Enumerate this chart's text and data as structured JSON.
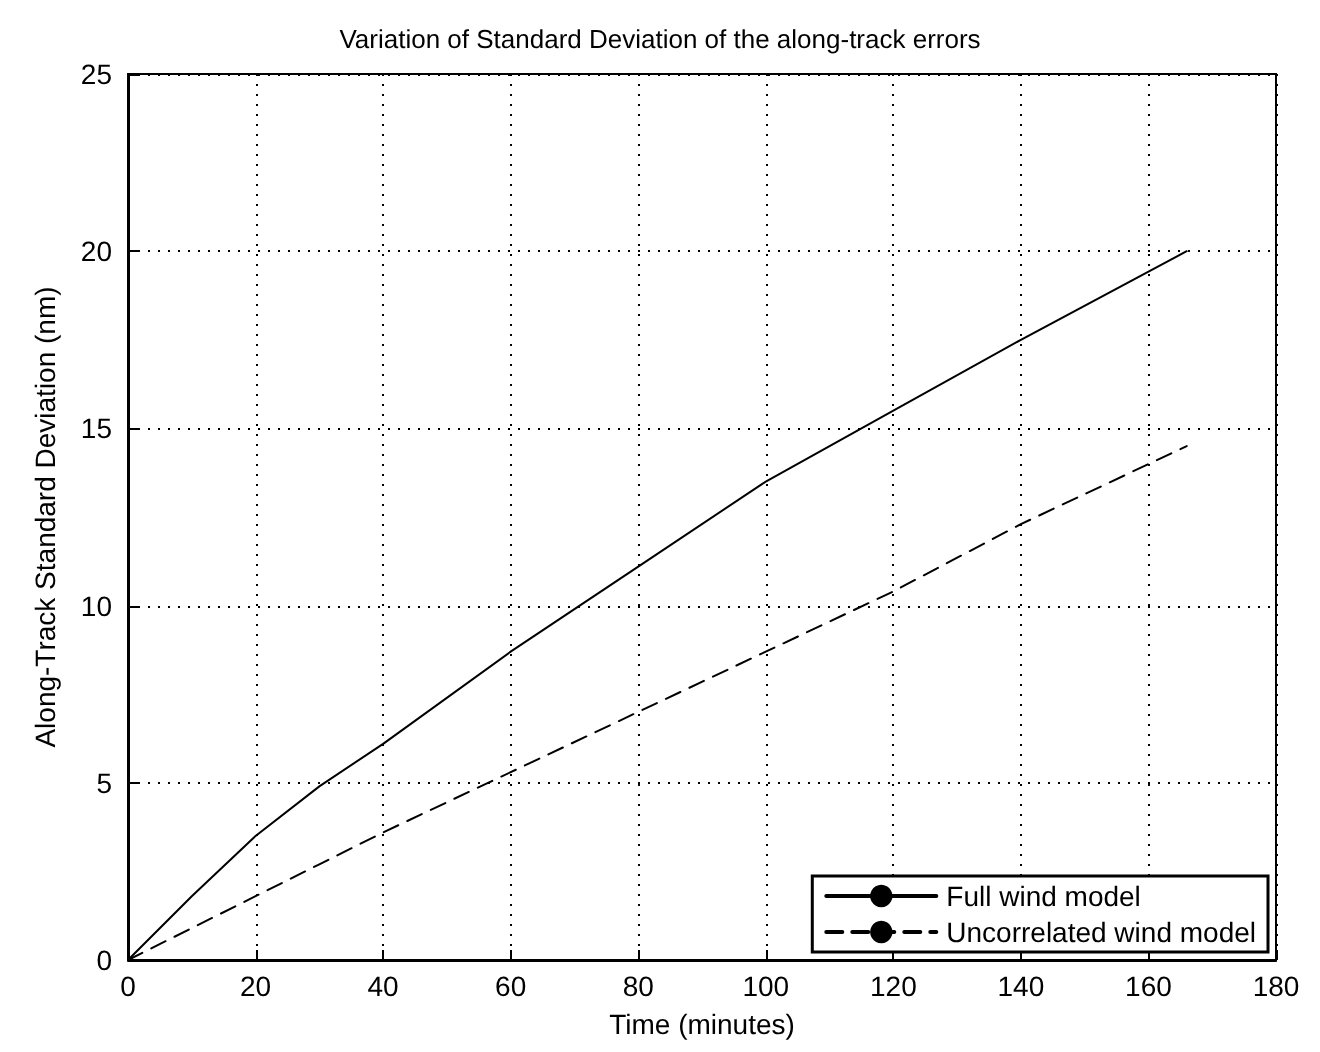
{
  "chart_data": {
    "type": "line",
    "title": "Variation of Standard Deviation of the along-track errors",
    "xlabel": "Time (minutes)",
    "ylabel": "Along-Track Standard Deviation (nm)",
    "x": [
      0,
      10,
      20,
      30,
      40,
      60,
      80,
      100,
      120,
      140,
      166
    ],
    "series": [
      {
        "name": "Full wind model",
        "color": "#000000",
        "line_style": "solid",
        "values": [
          0,
          1.8,
          3.5,
          4.9,
          6.1,
          8.7,
          11.1,
          13.5,
          15.5,
          17.5,
          20
        ]
      },
      {
        "name": "Uncorrelated wind model",
        "color": "#000000",
        "line_style": "dashed",
        "values": [
          0,
          0.9,
          1.8,
          2.7,
          3.6,
          5.3,
          7.0,
          8.7,
          10.4,
          12.3,
          14.5
        ]
      }
    ],
    "xlim": [
      0,
      180
    ],
    "xticks": [
      0,
      20,
      40,
      60,
      80,
      100,
      120,
      140,
      160,
      180
    ],
    "ylim": [
      0,
      25
    ],
    "yticks": [
      0,
      5,
      10,
      15,
      20,
      25
    ],
    "grid": true,
    "legend": "bottom right",
    "marker": "none"
  }
}
